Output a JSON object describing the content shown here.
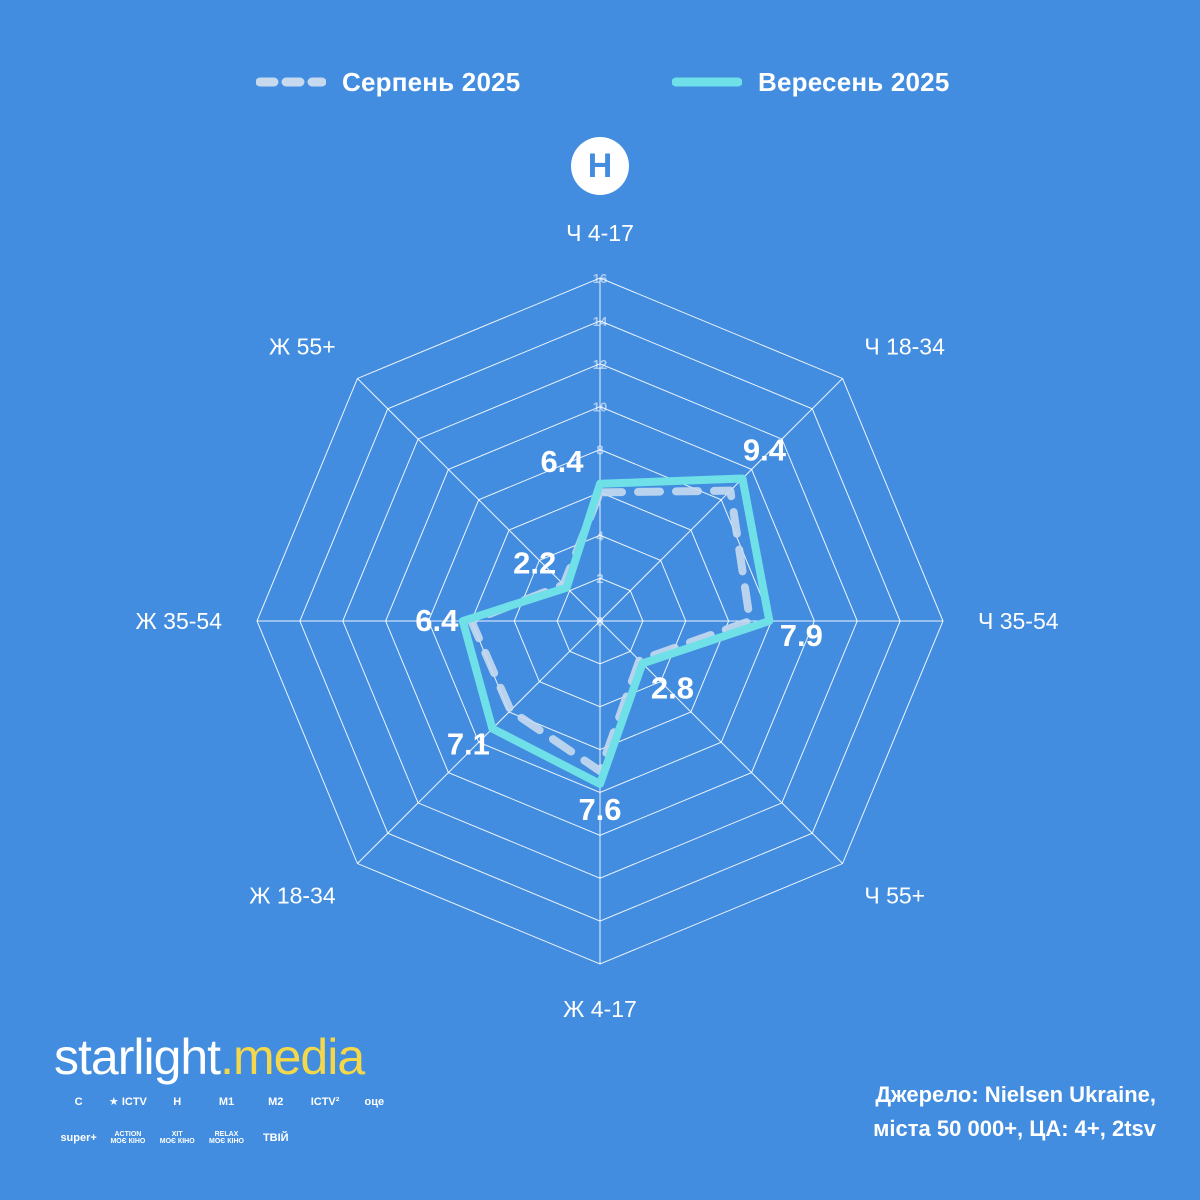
{
  "legend": {
    "aug_label": "Серпень 2025",
    "sep_label": "Вересень 2025"
  },
  "channel_badge": "Н",
  "colors": {
    "background": "#428ddf",
    "aug": "#c7d9ef",
    "sep": "#6fe0e8",
    "grid": "#ffffff",
    "brand_accent": "#f5d84a"
  },
  "chart_data": {
    "type": "radar",
    "title": "",
    "axes": [
      "Ч 4-17",
      "Ч 18-34",
      "Ч 35-54",
      "Ч 55+",
      "Ж 4-17",
      "Ж 18-34",
      "Ж 35-54",
      "Ж 55+"
    ],
    "rlim": [
      0,
      16
    ],
    "ticks": [
      0,
      2,
      4,
      6,
      8,
      10,
      12,
      14,
      16
    ],
    "tick_labels": [
      "0",
      "2",
      "4",
      "",
      "8",
      "10",
      "12",
      "14",
      "16"
    ],
    "grid": true,
    "legend_position": "top",
    "series": [
      {
        "name": "Серпень 2025",
        "style": "dashed",
        "values": [
          6.0,
          8.6,
          7.0,
          2.6,
          7.0,
          5.9,
          6.0,
          2.4
        ]
      },
      {
        "name": "Вересень 2025",
        "style": "solid",
        "values": [
          6.4,
          9.4,
          7.9,
          2.8,
          7.6,
          7.1,
          6.4,
          2.2
        ],
        "labels": [
          "6.4",
          "9.4",
          "7.9",
          "2.8",
          "7.6",
          "7.1",
          "6.4",
          "2.2"
        ]
      }
    ]
  },
  "brand": {
    "part1": "starlight",
    "part2": ".media"
  },
  "channels": [
    "С",
    "★ ICTV",
    "Н",
    "М1",
    "М2",
    "ICTV²",
    "оце",
    "super+",
    "ACTION\nМОЄ КІНО",
    "ХІТ\nМОЄ КІНО",
    "RELAX\nМОЄ КІНО",
    "ТВІЙ"
  ],
  "source": {
    "line1": "Джерело: Nielsen Ukraine,",
    "line2": "міста 50 000+, ЦА: 4+, 2tsv"
  }
}
